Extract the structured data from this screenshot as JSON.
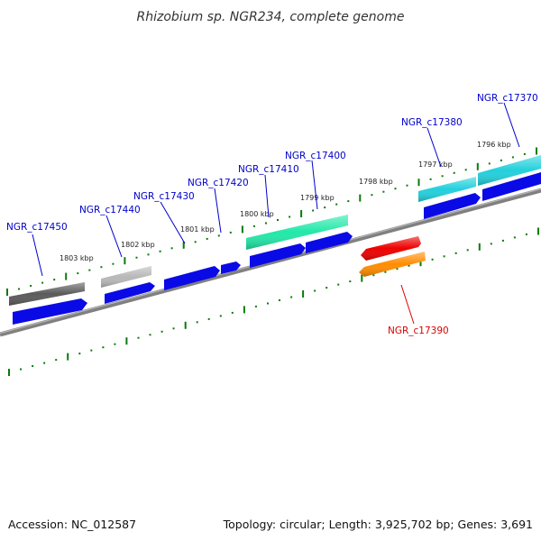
{
  "title": "Rhizobium sp. NGR234, complete genome",
  "footer": {
    "accession": "Accession: NC_012587",
    "topology": "Topology: circular; Length: 3,925,702 bp; Genes: 3,691"
  },
  "colors": {
    "label_blue": "#0000cc",
    "label_red": "#dd0000",
    "tick_green": "#0a7a0a",
    "backbone": "#808080"
  },
  "kbp_labels": [
    {
      "text": "1803 kbp"
    },
    {
      "text": "1802 kbp"
    },
    {
      "text": "1801 kbp"
    },
    {
      "text": "1800 kbp"
    },
    {
      "text": "1799 kbp"
    },
    {
      "text": "1798 kbp"
    },
    {
      "text": "1797 kbp"
    },
    {
      "text": "1796 kbp"
    }
  ],
  "gene_labels": [
    {
      "text": "NGR_c17450",
      "color": "#0000cc"
    },
    {
      "text": "NGR_c17440",
      "color": "#0000cc"
    },
    {
      "text": "NGR_c17430",
      "color": "#0000cc"
    },
    {
      "text": "NGR_c17420",
      "color": "#0000cc"
    },
    {
      "text": "NGR_c17410",
      "color": "#0000cc"
    },
    {
      "text": "NGR_c17400",
      "color": "#0000cc"
    },
    {
      "text": "NGR_c17380",
      "color": "#0000cc"
    },
    {
      "text": "NGR_c17370",
      "color": "#0000cc"
    },
    {
      "text": "NGR_c17390",
      "color": "#dd0000"
    }
  ],
  "features": [
    {
      "name": "gene-bar-c17450",
      "color": "#5a5a5a",
      "track": "upper"
    },
    {
      "name": "cds-arrow-c17450",
      "color": "#0a0ae6",
      "track": "lower"
    },
    {
      "name": "gene-bar-c17440",
      "color": "#b8b8b8",
      "track": "upper"
    },
    {
      "name": "cds-arrow-c17440",
      "color": "#0a0ae6",
      "track": "lower"
    },
    {
      "name": "cds-arrow-c17430",
      "color": "#0a0ae6",
      "track": "lower"
    },
    {
      "name": "cds-arrow-c17420",
      "color": "#0a0ae6",
      "track": "lower"
    },
    {
      "name": "gene-bar-c17410-c17400",
      "color": "#22e8a8",
      "track": "upper"
    },
    {
      "name": "cds-arrow-c17410",
      "color": "#0a0ae6",
      "track": "lower"
    },
    {
      "name": "cds-arrow-c17400",
      "color": "#0a0ae6",
      "track": "lower"
    },
    {
      "name": "gene-bar-c17380",
      "color": "#22d0dc",
      "track": "upper"
    },
    {
      "name": "cds-arrow-c17380",
      "color": "#0a0ae6",
      "track": "lower"
    },
    {
      "name": "gene-bar-c17370",
      "color": "#22d0dc",
      "track": "upper"
    },
    {
      "name": "cds-arrow-c17370",
      "color": "#0a0ae6",
      "track": "lower"
    },
    {
      "name": "gene-bar-c17390",
      "color": "#ee0000",
      "track": "reverse-upper"
    },
    {
      "name": "cds-arrow-c17390",
      "color": "#ff8c00",
      "track": "reverse-lower"
    }
  ]
}
